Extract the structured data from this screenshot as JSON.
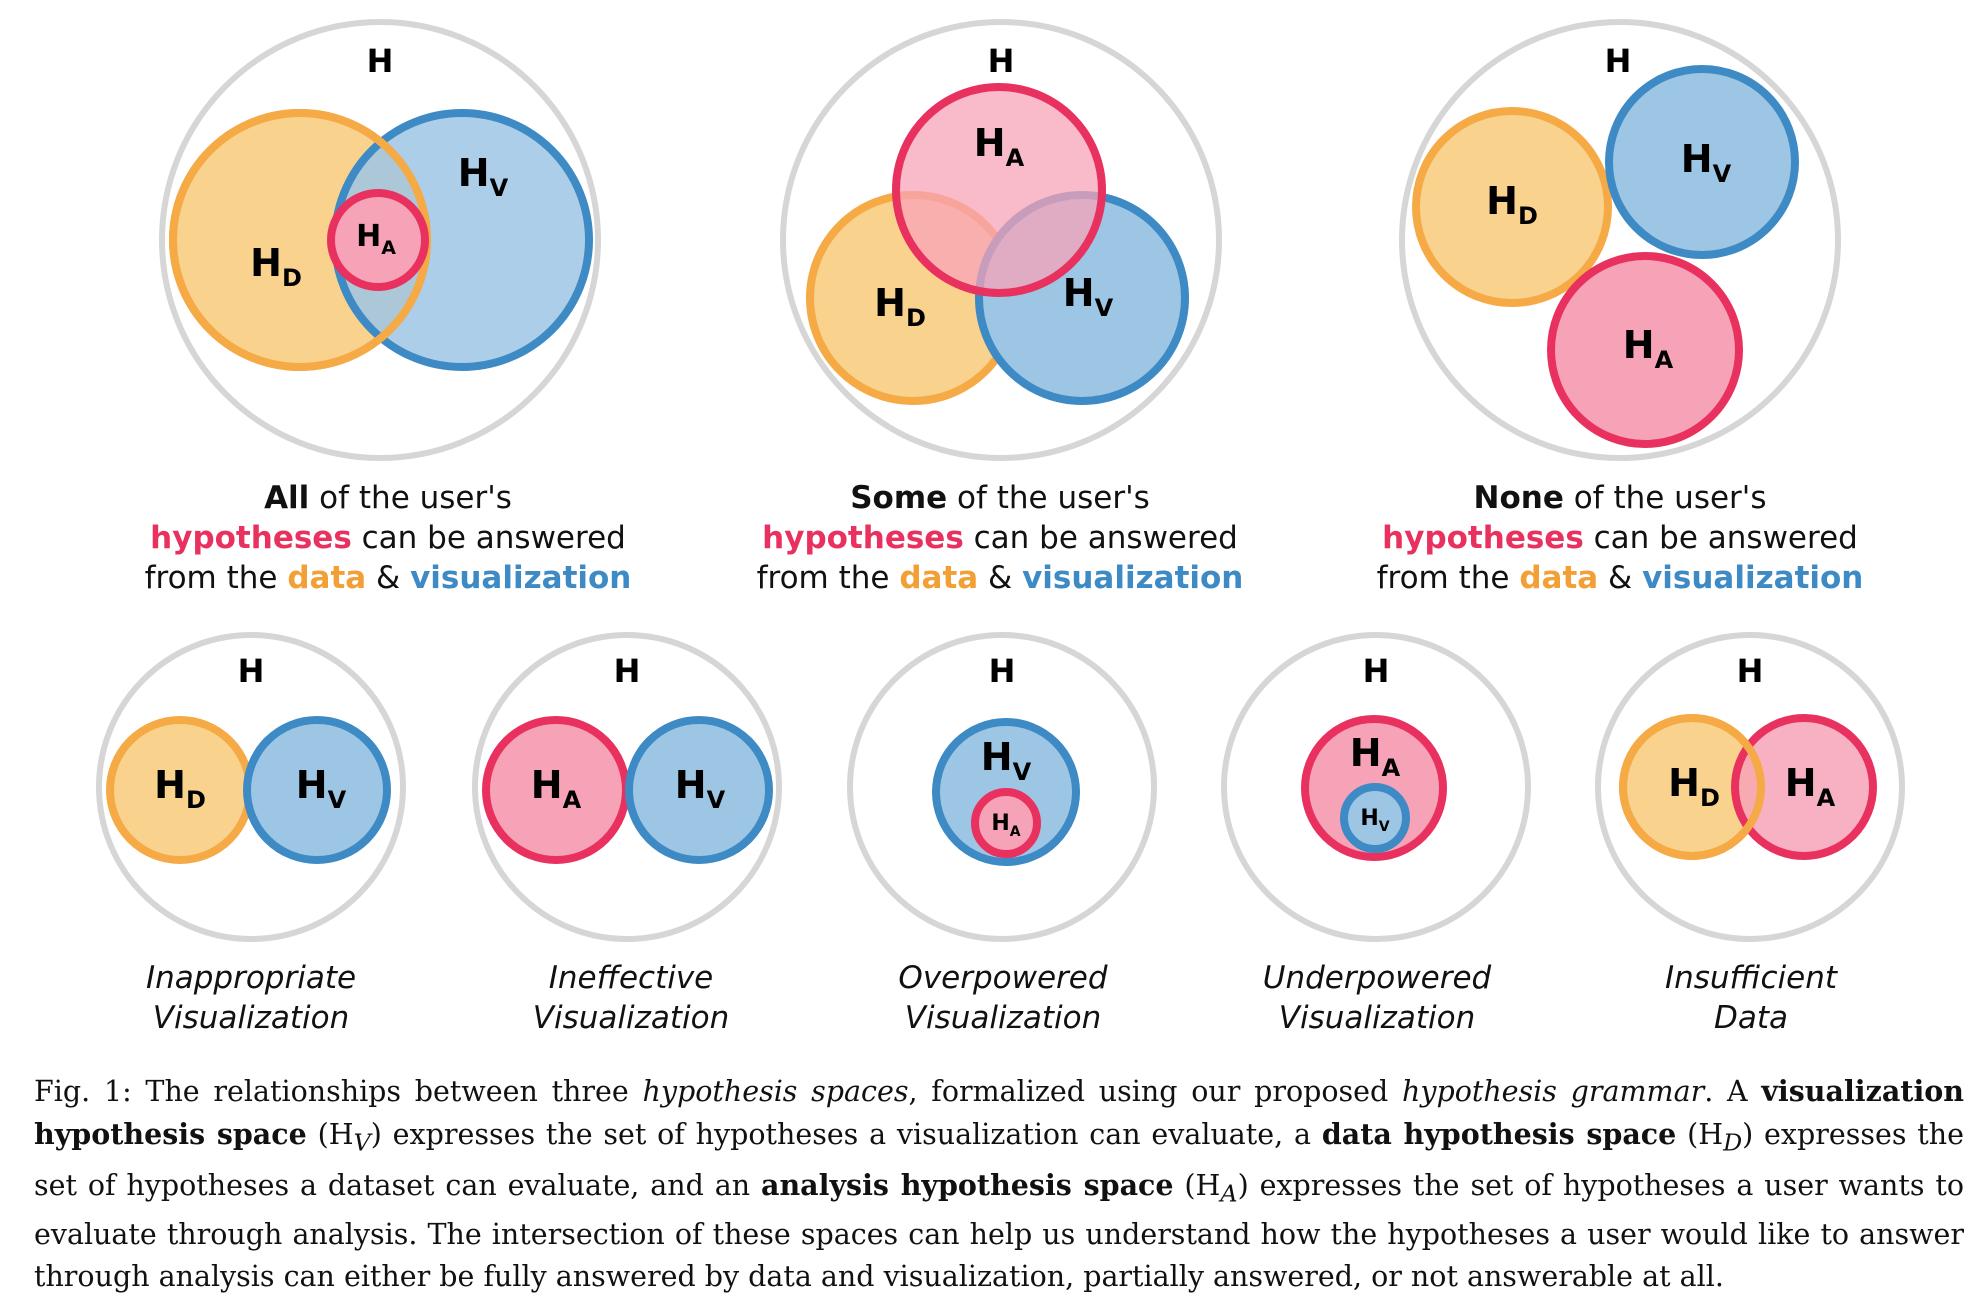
{
  "colors": {
    "outer_stroke": "#d6d6d6",
    "data_fill": "#f9d28e",
    "data_stroke": "#f5aa45",
    "vis_fill": "#9dc6e5",
    "vis_stroke": "#3d8ac5",
    "analysis_fill": "#f7a3b7",
    "analysis_stroke": "#e8315e"
  },
  "labels": {
    "universe": "H",
    "data": {
      "base": "H",
      "sub": "D"
    },
    "vis": {
      "base": "H",
      "sub": "V"
    },
    "analysis": {
      "base": "H",
      "sub": "A"
    }
  },
  "top_panels": [
    {
      "id": "all",
      "lead": "All",
      "line1_rest": " of the user's",
      "hyp": "hypotheses",
      "line2_rest": " can be answered",
      "from": "from the ",
      "data_word": "data",
      "amp": " & ",
      "vis_word": "visualization"
    },
    {
      "id": "some",
      "lead": "Some",
      "line1_rest": " of the user's",
      "hyp": "hypotheses",
      "line2_rest": " can be answered",
      "from": "from the ",
      "data_word": "data",
      "amp": " & ",
      "vis_word": "visualization"
    },
    {
      "id": "none",
      "lead": "None",
      "line1_rest": " of the user's",
      "hyp": "hypotheses",
      "line2_rest": " can be answered",
      "from": "from the ",
      "data_word": "data",
      "amp": " & ",
      "vis_word": "visualization"
    }
  ],
  "bottom_panels": [
    {
      "id": "inappropriate",
      "line1": "Inappropriate",
      "line2": "Visualization"
    },
    {
      "id": "ineffective",
      "line1": "Ineffective",
      "line2": "Visualization"
    },
    {
      "id": "overpowered",
      "line1": "Overpowered",
      "line2": "Visualization"
    },
    {
      "id": "underpowered",
      "line1": "Underpowered",
      "line2": "Visualization"
    },
    {
      "id": "insufficient",
      "line1": "Insufficient",
      "line2": "Data"
    }
  ],
  "caption": {
    "fig": "Fig. 1: The relationships between three ",
    "hs": "hypothesis spaces",
    "t2": ", formalized using our proposed ",
    "hg": "hypothesis grammar",
    "t3": ". A ",
    "vhs": "visualization hypothesis space",
    "vsym_open": " (H",
    "vsym_sub": "V",
    "t4": ") expresses the set of hypotheses a visualization can evaluate, a ",
    "dhs": "data hypothesis space",
    "dsym_open": " (H",
    "dsym_sub": "D",
    "t5": ") expresses the set of hypotheses a dataset can evaluate, and an ",
    "ahs": "analysis hypothesis space",
    "asym_open": " (H",
    "asym_sub": "A",
    "t6": ") expresses the set of hypotheses a user wants to evaluate through analysis. The intersection of these spaces can help us understand how the hypotheses a user would like to answer through analysis can either be fully answered by data and visualization, partially answered, or not answerable at all."
  }
}
